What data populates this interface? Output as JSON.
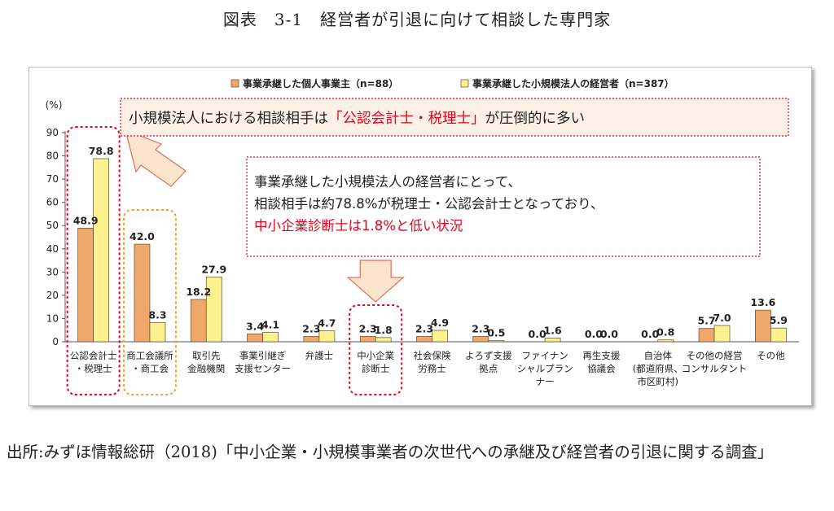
{
  "figure_title": "図表　3-1　経営者が引退に向けて相談した専門家",
  "source_text": "出所:みずほ情報総研（2018)「中小企業・小規模事業者の次世代への承継及び経営者の引退に関する調査」",
  "colors": {
    "series1": "#f0a86a",
    "series2": "#fbf18f",
    "bar_stroke": "#5a4a30",
    "red": "#e8001c",
    "orange_dash": "#f0a030",
    "callout_bg": "#fdf0e6",
    "arrow_fill": "#fde4cf",
    "arrow_stroke": "#e07058"
  },
  "chart_data": {
    "type": "bar",
    "ylabel": "(%)",
    "ylim": [
      0,
      90
    ],
    "yticks": [
      0,
      10,
      20,
      30,
      40,
      50,
      60,
      70,
      80,
      90
    ],
    "legend_position": "top",
    "categories": [
      [
        "公認会計士",
        "・税理士"
      ],
      [
        "商工会議所",
        "・商工会"
      ],
      [
        "取引先",
        "金融機関"
      ],
      [
        "事業引継ぎ",
        "支援センター"
      ],
      [
        "弁護士"
      ],
      [
        "中小企業",
        "診断士"
      ],
      [
        "社会保険",
        "労務士"
      ],
      [
        "よろず支援",
        "拠点"
      ],
      [
        "ファイナン",
        "シャルプラン",
        "ナー"
      ],
      [
        "再生支援",
        "協議会"
      ],
      [
        "自治体",
        "(都道府県、",
        "市区町村)"
      ],
      [
        "その他の経営",
        "コンサルタント"
      ],
      [
        "その他"
      ]
    ],
    "series": [
      {
        "name": "事業承継した個人事業主（n=88）",
        "values": [
          48.9,
          42.0,
          18.2,
          3.4,
          2.3,
          2.3,
          2.3,
          2.3,
          0.0,
          0.0,
          0.0,
          5.7,
          13.6
        ],
        "labels": [
          "48.9",
          "42.0",
          "18.2",
          "3.4",
          "2.3",
          "2.3",
          "2.3",
          "2.3",
          "0.0",
          "0.0",
          "0.0",
          "5.7",
          "13.6"
        ]
      },
      {
        "name": "事業承継した小規模法人の経営者（n=387）",
        "values": [
          78.8,
          8.3,
          27.9,
          4.1,
          4.7,
          1.8,
          4.9,
          0.5,
          1.6,
          0.0,
          0.8,
          7.0,
          5.9
        ],
        "labels": [
          "78.8",
          "8.3",
          "27.9",
          "4.1",
          "4.7",
          "1.8",
          "4.9",
          "0.5",
          "1.6",
          "0.0",
          "0.8",
          "7.0",
          "5.9"
        ]
      }
    ],
    "annotations": {
      "callout_top": {
        "prefix": "小規模法人における相談相手は",
        "highlight": "「公認会計士・税理士」",
        "suffix": "が圧倒的に多い"
      },
      "callout_mid": {
        "line1": "事業承継した小規模法人の経営者にとって、",
        "line2": "相談相手は約78.8%が税理士・公認会計士となっており、",
        "line3": "中小企業診断士は1.8%と低い状況"
      }
    }
  }
}
